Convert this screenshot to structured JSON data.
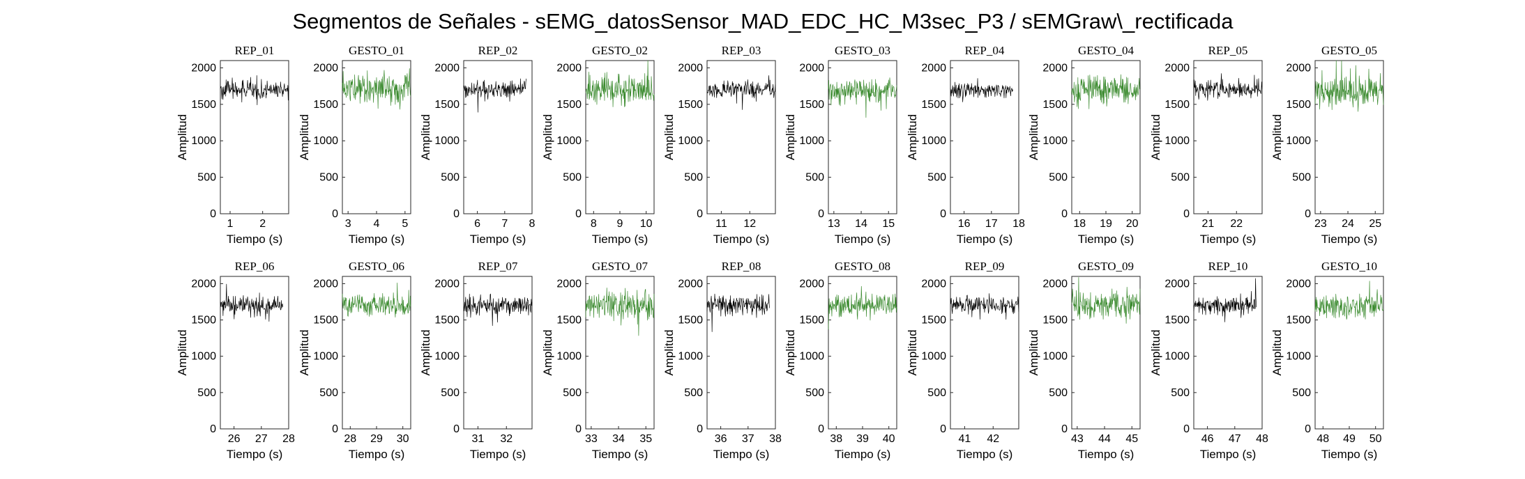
{
  "title": "Segmentos de Señales - sEMG_datosSensor_MAD_EDC_HC_M3sec_P3 / sEMGraw\\_rectificada",
  "colors": {
    "rep": "#000000",
    "gesto": "#3a8a2e",
    "axis": "#262626"
  },
  "chart_data": [
    {
      "type": "line",
      "title": "REP_01",
      "xlabel": "Tiempo (s)",
      "ylabel": "Amplitud",
      "xlim": [
        0.7,
        2.8
      ],
      "ylim": [
        0,
        2100
      ],
      "xticks": [
        1,
        2
      ],
      "yticks": [
        0,
        500,
        1000,
        1500,
        2000
      ],
      "series": [
        {
          "name": "REP_01",
          "color": "#000000",
          "t_start": 0.7,
          "t_end": 2.8,
          "mean": 1700,
          "amp": 180
        }
      ]
    },
    {
      "type": "line",
      "title": "GESTO_01",
      "xlabel": "Tiempo (s)",
      "ylabel": "Amplitud",
      "xlim": [
        2.8,
        5.2
      ],
      "ylim": [
        0,
        2100
      ],
      "xticks": [
        3,
        4,
        5
      ],
      "yticks": [
        0,
        500,
        1000,
        1500,
        2000
      ],
      "series": [
        {
          "name": "GESTO_01",
          "color": "#3a8a2e",
          "t_start": 2.8,
          "t_end": 5.2,
          "mean": 1720,
          "amp": 300
        }
      ]
    },
    {
      "type": "line",
      "title": "REP_02",
      "xlabel": "Tiempo (s)",
      "ylabel": "Amplitud",
      "xlim": [
        5.5,
        8
      ],
      "ylim": [
        0,
        2100
      ],
      "xticks": [
        6,
        7,
        8
      ],
      "yticks": [
        0,
        500,
        1000,
        1500,
        2000
      ],
      "series": [
        {
          "name": "REP_02",
          "color": "#000000",
          "t_start": 5.5,
          "t_end": 7.8,
          "mean": 1700,
          "amp": 180
        }
      ]
    },
    {
      "type": "line",
      "title": "GESTO_02",
      "xlabel": "Tiempo (s)",
      "ylabel": "Amplitud",
      "xlim": [
        7.7,
        10.3
      ],
      "ylim": [
        0,
        2100
      ],
      "xticks": [
        8,
        9,
        10
      ],
      "yticks": [
        0,
        500,
        1000,
        1500,
        2000
      ],
      "series": [
        {
          "name": "GESTO_02",
          "color": "#3a8a2e",
          "t_start": 7.7,
          "t_end": 10.3,
          "mean": 1700,
          "amp": 300
        }
      ]
    },
    {
      "type": "line",
      "title": "REP_03",
      "xlabel": "Tiempo (s)",
      "ylabel": "Amplitud",
      "xlim": [
        10.5,
        12.9
      ],
      "ylim": [
        0,
        2100
      ],
      "xticks": [
        11,
        12
      ],
      "yticks": [
        0,
        500,
        1000,
        1500,
        2000
      ],
      "series": [
        {
          "name": "REP_03",
          "color": "#000000",
          "t_start": 10.5,
          "t_end": 12.9,
          "mean": 1700,
          "amp": 180
        }
      ]
    },
    {
      "type": "line",
      "title": "GESTO_03",
      "xlabel": "Tiempo (s)",
      "ylabel": "Amplitud",
      "xlim": [
        12.8,
        15.3
      ],
      "ylim": [
        0,
        2100
      ],
      "xticks": [
        13,
        14,
        15
      ],
      "yticks": [
        0,
        500,
        1000,
        1500,
        2000
      ],
      "series": [
        {
          "name": "GESTO_03",
          "color": "#3a8a2e",
          "t_start": 12.8,
          "t_end": 15.3,
          "mean": 1700,
          "amp": 260
        }
      ]
    },
    {
      "type": "line",
      "title": "REP_04",
      "xlabel": "Tiempo (s)",
      "ylabel": "Amplitud",
      "xlim": [
        15.5,
        18
      ],
      "ylim": [
        0,
        2100
      ],
      "xticks": [
        16,
        17,
        18
      ],
      "yticks": [
        0,
        500,
        1000,
        1500,
        2000
      ],
      "series": [
        {
          "name": "REP_04",
          "color": "#000000",
          "t_start": 15.5,
          "t_end": 17.8,
          "mean": 1700,
          "amp": 180
        }
      ]
    },
    {
      "type": "line",
      "title": "GESTO_04",
      "xlabel": "Tiempo (s)",
      "ylabel": "Amplitud",
      "xlim": [
        17.7,
        20.3
      ],
      "ylim": [
        0,
        2100
      ],
      "xticks": [
        18,
        19,
        20
      ],
      "yticks": [
        0,
        500,
        1000,
        1500,
        2000
      ],
      "series": [
        {
          "name": "GESTO_04",
          "color": "#3a8a2e",
          "t_start": 17.7,
          "t_end": 20.3,
          "mean": 1700,
          "amp": 320
        }
      ]
    },
    {
      "type": "line",
      "title": "REP_05",
      "xlabel": "Tiempo (s)",
      "ylabel": "Amplitud",
      "xlim": [
        20.5,
        22.9
      ],
      "ylim": [
        0,
        2100
      ],
      "xticks": [
        21,
        22
      ],
      "yticks": [
        0,
        500,
        1000,
        1500,
        2000
      ],
      "series": [
        {
          "name": "REP_05",
          "color": "#000000",
          "t_start": 20.5,
          "t_end": 22.9,
          "mean": 1700,
          "amp": 180
        }
      ]
    },
    {
      "type": "line",
      "title": "GESTO_05",
      "xlabel": "Tiempo (s)",
      "ylabel": "Amplitud",
      "xlim": [
        22.8,
        25.3
      ],
      "ylim": [
        0,
        2100
      ],
      "xticks": [
        23,
        24,
        25
      ],
      "yticks": [
        0,
        500,
        1000,
        1500,
        2000
      ],
      "series": [
        {
          "name": "GESTO_05",
          "color": "#3a8a2e",
          "t_start": 22.8,
          "t_end": 25.3,
          "mean": 1700,
          "amp": 320
        }
      ]
    },
    {
      "type": "line",
      "title": "REP_06",
      "xlabel": "Tiempo (s)",
      "ylabel": "Amplitud",
      "xlim": [
        25.5,
        28
      ],
      "ylim": [
        0,
        2100
      ],
      "xticks": [
        26,
        27,
        28
      ],
      "yticks": [
        0,
        500,
        1000,
        1500,
        2000
      ],
      "series": [
        {
          "name": "REP_06",
          "color": "#000000",
          "t_start": 25.5,
          "t_end": 27.8,
          "mean": 1700,
          "amp": 180
        }
      ]
    },
    {
      "type": "line",
      "title": "GESTO_06",
      "xlabel": "Tiempo (s)",
      "ylabel": "Amplitud",
      "xlim": [
        27.7,
        30.3
      ],
      "ylim": [
        0,
        2100
      ],
      "xticks": [
        28,
        29,
        30
      ],
      "yticks": [
        0,
        500,
        1000,
        1500,
        2000
      ],
      "series": [
        {
          "name": "GESTO_06",
          "color": "#3a8a2e",
          "t_start": 27.7,
          "t_end": 30.3,
          "mean": 1700,
          "amp": 240
        }
      ]
    },
    {
      "type": "line",
      "title": "REP_07",
      "xlabel": "Tiempo (s)",
      "ylabel": "Amplitud",
      "xlim": [
        30.5,
        32.9
      ],
      "ylim": [
        0,
        2100
      ],
      "xticks": [
        31,
        32
      ],
      "yticks": [
        0,
        500,
        1000,
        1500,
        2000
      ],
      "series": [
        {
          "name": "REP_07",
          "color": "#000000",
          "t_start": 30.5,
          "t_end": 32.9,
          "mean": 1700,
          "amp": 200
        }
      ]
    },
    {
      "type": "line",
      "title": "GESTO_07",
      "xlabel": "Tiempo (s)",
      "ylabel": "Amplitud",
      "xlim": [
        32.8,
        35.3
      ],
      "ylim": [
        0,
        2100
      ],
      "xticks": [
        33,
        34,
        35
      ],
      "yticks": [
        0,
        500,
        1000,
        1500,
        2000
      ],
      "series": [
        {
          "name": "GESTO_07",
          "color": "#3a8a2e",
          "t_start": 32.8,
          "t_end": 35.3,
          "mean": 1700,
          "amp": 320
        }
      ]
    },
    {
      "type": "line",
      "title": "REP_08",
      "xlabel": "Tiempo (s)",
      "ylabel": "Amplitud",
      "xlim": [
        35.5,
        38
      ],
      "ylim": [
        0,
        2100
      ],
      "xticks": [
        36,
        37,
        38
      ],
      "yticks": [
        0,
        500,
        1000,
        1500,
        2000
      ],
      "series": [
        {
          "name": "REP_08",
          "color": "#000000",
          "t_start": 35.5,
          "t_end": 37.8,
          "mean": 1700,
          "amp": 200
        }
      ]
    },
    {
      "type": "line",
      "title": "GESTO_08",
      "xlabel": "Tiempo (s)",
      "ylabel": "Amplitud",
      "xlim": [
        37.7,
        40.3
      ],
      "ylim": [
        0,
        2100
      ],
      "xticks": [
        38,
        39,
        40
      ],
      "yticks": [
        0,
        500,
        1000,
        1500,
        2000
      ],
      "series": [
        {
          "name": "GESTO_08",
          "color": "#3a8a2e",
          "t_start": 37.7,
          "t_end": 40.3,
          "mean": 1700,
          "amp": 240
        }
      ]
    },
    {
      "type": "line",
      "title": "REP_09",
      "xlabel": "Tiempo (s)",
      "ylabel": "Amplitud",
      "xlim": [
        40.5,
        42.9
      ],
      "ylim": [
        0,
        2100
      ],
      "xticks": [
        41,
        42
      ],
      "yticks": [
        0,
        500,
        1000,
        1500,
        2000
      ],
      "series": [
        {
          "name": "REP_09",
          "color": "#000000",
          "t_start": 40.5,
          "t_end": 42.9,
          "mean": 1700,
          "amp": 180
        }
      ]
    },
    {
      "type": "line",
      "title": "GESTO_09",
      "xlabel": "Tiempo (s)",
      "ylabel": "Amplitud",
      "xlim": [
        42.8,
        45.3
      ],
      "ylim": [
        0,
        2100
      ],
      "xticks": [
        43,
        44,
        45
      ],
      "yticks": [
        0,
        500,
        1000,
        1500,
        2000
      ],
      "series": [
        {
          "name": "GESTO_09",
          "color": "#3a8a2e",
          "t_start": 42.8,
          "t_end": 45.3,
          "mean": 1700,
          "amp": 300
        }
      ]
    },
    {
      "type": "line",
      "title": "REP_10",
      "xlabel": "Tiempo (s)",
      "ylabel": "Amplitud",
      "xlim": [
        45.5,
        48
      ],
      "ylim": [
        0,
        2100
      ],
      "xticks": [
        46,
        47,
        48
      ],
      "yticks": [
        0,
        500,
        1000,
        1500,
        2000
      ],
      "series": [
        {
          "name": "REP_10",
          "color": "#000000",
          "t_start": 45.5,
          "t_end": 47.8,
          "mean": 1700,
          "amp": 200
        }
      ]
    },
    {
      "type": "line",
      "title": "GESTO_10",
      "xlabel": "Tiempo (s)",
      "ylabel": "Amplitud",
      "xlim": [
        47.7,
        50.3
      ],
      "ylim": [
        0,
        2100
      ],
      "xticks": [
        48,
        49,
        50
      ],
      "yticks": [
        0,
        500,
        1000,
        1500,
        2000
      ],
      "series": [
        {
          "name": "GESTO_10",
          "color": "#3a8a2e",
          "t_start": 47.7,
          "t_end": 50.3,
          "mean": 1700,
          "amp": 280
        }
      ]
    }
  ]
}
